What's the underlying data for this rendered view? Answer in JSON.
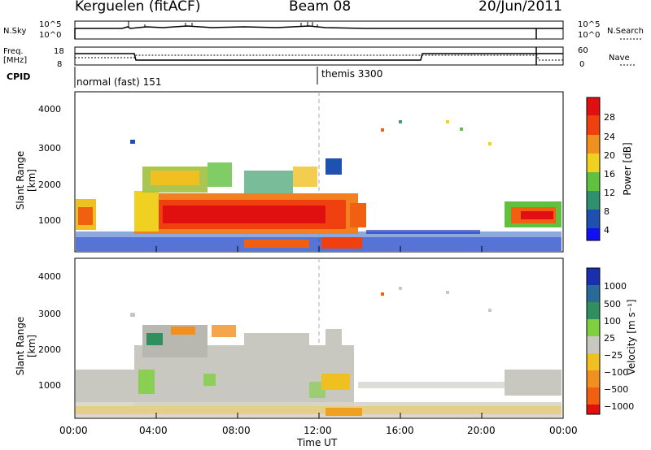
{
  "header": {
    "station": "Kerguelen (fitACF)",
    "beam": "Beam 08",
    "date": "20/Jun/2011"
  },
  "status_panels": {
    "nsky_label": "N.Sky",
    "nsky_ticks": [
      "10^5",
      "10^0"
    ],
    "nsearch_label": "N.Search",
    "nsearch_ticks": [
      "10^5",
      "10^0"
    ],
    "freq_label_1": "Freq.",
    "freq_label_2": "[MHz]",
    "freq_ticks": [
      "18",
      "8"
    ],
    "nave_label": "Nave",
    "nave_ticks": [
      "60",
      "0"
    ],
    "cpid_label": "CPID",
    "cpid_modes": [
      {
        "name": "normal (fast) 151"
      },
      {
        "name": "themis 3300"
      }
    ]
  },
  "chart_data": [
    {
      "type": "heatmap",
      "title": "",
      "ylabel": "Slant Range [km]",
      "xlabel": "",
      "yticks": [
        "1000",
        "2000",
        "3000",
        "4000"
      ],
      "ylim": [
        200,
        4600
      ],
      "xlim": [
        0,
        24
      ],
      "colorbar_label": "Power [dB]",
      "colorbar_ticks": [
        "4",
        "8",
        "12",
        "16",
        "20",
        "24",
        "28"
      ],
      "colorbar_colors": [
        "#1010f0",
        "#1f4fb0",
        "#2f8f6f",
        "#60c040",
        "#f0d020",
        "#f09020",
        "#f04010",
        "#e01010"
      ]
    },
    {
      "type": "heatmap",
      "title": "",
      "ylabel": "Slant Range [km]",
      "xlabel": "Time UT",
      "xticks": [
        "00:00",
        "04:00",
        "08:00",
        "12:00",
        "16:00",
        "20:00",
        "00:00"
      ],
      "yticks": [
        "1000",
        "2000",
        "3000",
        "4000"
      ],
      "ylim": [
        200,
        4600
      ],
      "xlim": [
        0,
        24
      ],
      "colorbar_label": "Velocity [m s⁻¹]",
      "colorbar_ticks": [
        "1000",
        "500",
        "100",
        "25",
        "−25",
        "−100",
        "−500",
        "−1000"
      ],
      "colorbar_colors": [
        "#1a2fb0",
        "#2a6a9a",
        "#2f8f5f",
        "#7fd040",
        "#c8c8c0",
        "#f0c020",
        "#f09020",
        "#f06010",
        "#e01010"
      ]
    }
  ]
}
